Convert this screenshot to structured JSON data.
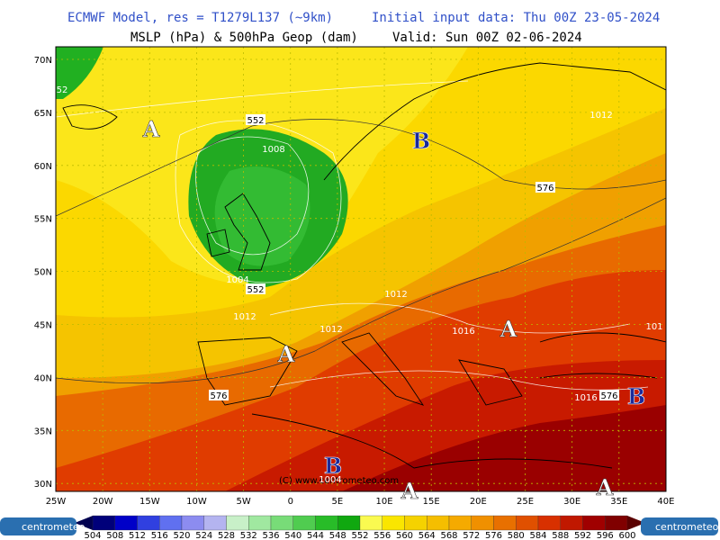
{
  "header": {
    "model": "ECMWF Model, res = T1279L137 (~9km)",
    "input": "Initial input data: Thu 00Z 23-05-2024",
    "field": "MSLP (hPa) & 500hPa Geop (dam)",
    "valid": "Valid: Sun 00Z 02-06-2024"
  },
  "map": {
    "lat_labels": [
      "70N",
      "65N",
      "60N",
      "55N",
      "50N",
      "45N",
      "40N",
      "35N",
      "30N"
    ],
    "lon_labels": [
      "25W",
      "20W",
      "15W",
      "10W",
      "5W",
      "0",
      "5E",
      "10E",
      "15E",
      "20E",
      "25E",
      "30E",
      "35E",
      "40E"
    ],
    "contour_labels": [
      "52",
      "552",
      "1008",
      "1004",
      "552",
      "1012",
      "1012",
      "1012",
      "1016",
      "576",
      "1012",
      "576",
      "1016",
      "576",
      "1004",
      "101"
    ],
    "pressure_centers": [
      "A",
      "B",
      "A",
      "A",
      "B",
      "A",
      "A",
      "B"
    ],
    "copyright": "(C) www.centrometeo.com"
  },
  "colorbar": {
    "labels": [
      "504",
      "508",
      "512",
      "516",
      "520",
      "524",
      "528",
      "532",
      "536",
      "540",
      "544",
      "548",
      "552",
      "556",
      "560",
      "564",
      "568",
      "572",
      "576",
      "580",
      "584",
      "588",
      "592",
      "596",
      "600"
    ]
  },
  "logo": {
    "left": "centrometeo",
    "right": "centrometeo"
  }
}
